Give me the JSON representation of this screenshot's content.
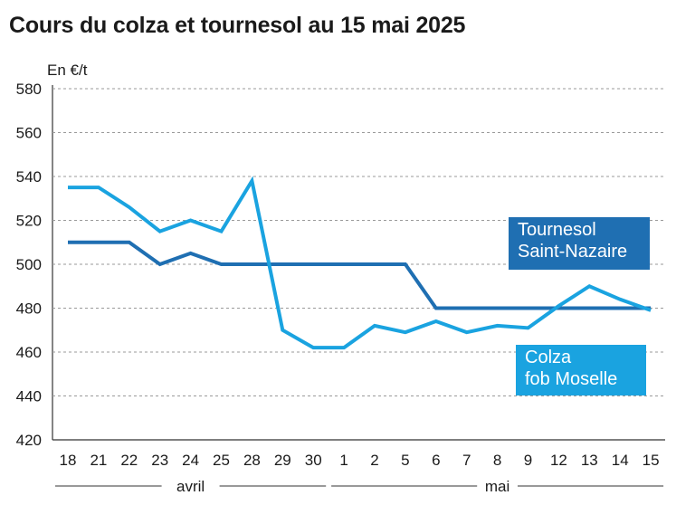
{
  "title": "Cours du colza et tournesol au 15 mai 2025",
  "chart_data": {
    "type": "line",
    "title": "Cours du colza et tournesol au 15 mai 2025",
    "ylabel": "En €/t",
    "ylim": [
      420,
      580
    ],
    "yticks": [
      420,
      440,
      460,
      480,
      500,
      520,
      540,
      560,
      580
    ],
    "grid": true,
    "categories": [
      "18",
      "21",
      "22",
      "23",
      "24",
      "25",
      "28",
      "29",
      "30",
      "1",
      "2",
      "5",
      "6",
      "7",
      "8",
      "9",
      "12",
      "13",
      "14",
      "15"
    ],
    "months": [
      {
        "label": "avril",
        "from": 0,
        "to": 8
      },
      {
        "label": "mai",
        "from": 9,
        "to": 19
      }
    ],
    "series": [
      {
        "name": "Tournesol Saint-Nazaire",
        "label_lines": [
          "Tournesol",
          "Saint-Nazaire"
        ],
        "color": "#1f6fb2",
        "values": [
          510,
          510,
          510,
          500,
          505,
          500,
          500,
          500,
          500,
          500,
          500,
          500,
          480,
          480,
          480,
          480,
          480,
          480,
          480,
          480
        ]
      },
      {
        "name": "Colza fob Moselle",
        "label_lines": [
          "Colza",
          "fob Moselle"
        ],
        "color": "#1aa3e0",
        "values": [
          535,
          535,
          526,
          515,
          520,
          515,
          538,
          470,
          462,
          462,
          472,
          469,
          474,
          469,
          472,
          471,
          481,
          490,
          484,
          479
        ]
      }
    ]
  }
}
